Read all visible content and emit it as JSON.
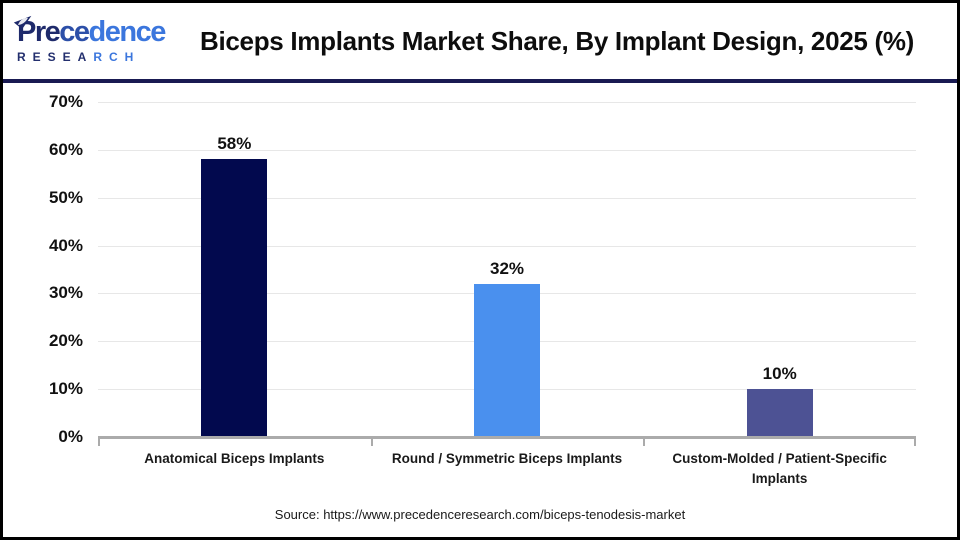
{
  "header": {
    "logo": {
      "name_part1": "Pre",
      "name_part2": "ce",
      "name_part3": "dence",
      "sub_part1": "RESEA",
      "sub_part2": "RCH"
    },
    "title": "Biceps Implants Market Share, By Implant Design, 2025 (%)"
  },
  "chart_data": {
    "type": "bar",
    "title": "Biceps Implants Market Share, By Implant Design, 2025 (%)",
    "categories": [
      "Anatomical Biceps Implants",
      "Round / Symmetric Biceps Implants",
      "Custom-Molded / Patient-Specific Implants"
    ],
    "values": [
      58,
      32,
      10
    ],
    "value_labels": [
      "58%",
      "32%",
      "10%"
    ],
    "yticks": [
      70,
      60,
      50,
      40,
      30,
      20,
      10,
      0
    ],
    "ytick_labels": [
      "70%",
      "60%",
      "50%",
      "40%",
      "30%",
      "20%",
      "10%",
      "0%"
    ],
    "ylim": [
      0,
      70
    ],
    "xlabel": "",
    "ylabel": "",
    "grid": "horizontal",
    "legend": "none",
    "bar_colors": [
      "#02094e",
      "#4a90ee",
      "#4d5294"
    ]
  },
  "footer": {
    "source": "Source: https://www.precedenceresearch.com/biceps-tenodesis-market"
  },
  "theme": {
    "divider_color": "#191a52",
    "border_color": "#000000",
    "logo_navy": "#1e2a6b",
    "logo_blue": "#3b76dd",
    "gridline_color": "#e7e7e7",
    "axis_color": "#ababab"
  }
}
